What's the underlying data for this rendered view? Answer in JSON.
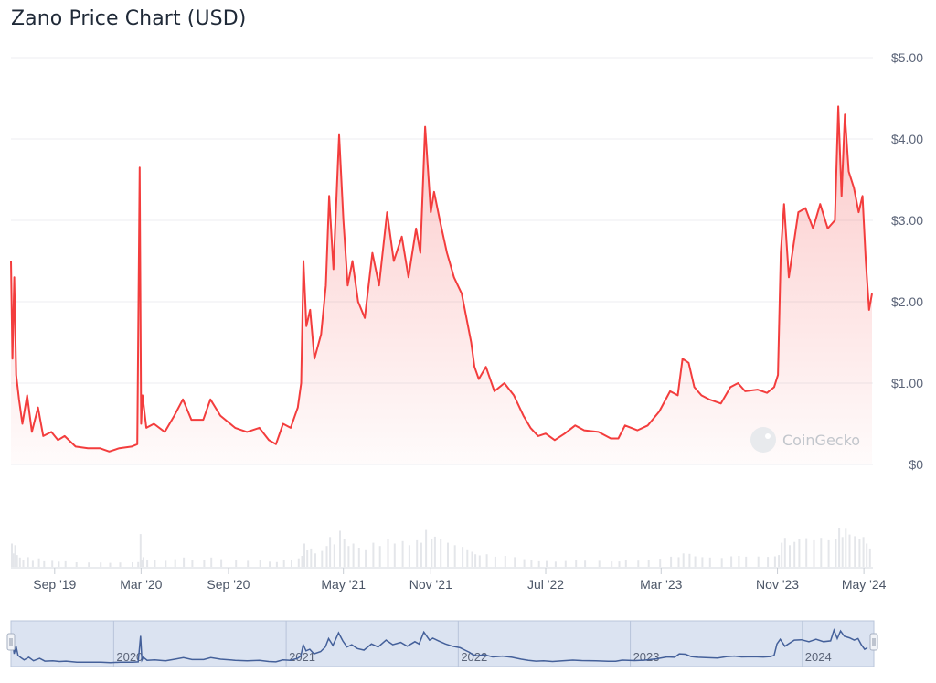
{
  "title": "Zano Price Chart (USD)",
  "watermark": "CoinGecko",
  "colors": {
    "line": "#f33d3d",
    "nav_line": "#44609a",
    "nav_fill": "#dbe3f1"
  },
  "chart_data": {
    "type": "area",
    "title": "Zano Price Chart (USD)",
    "x_range": [
      "2019-06-01",
      "2024-05-20"
    ],
    "ylim": [
      0,
      5
    ],
    "y_ticks": [
      {
        "value": 0,
        "label": "$0"
      },
      {
        "value": 1,
        "label": "$1.00"
      },
      {
        "value": 2,
        "label": "$2.00"
      },
      {
        "value": 3,
        "label": "$3.00"
      },
      {
        "value": 4,
        "label": "$4.00"
      },
      {
        "value": 5,
        "label": "$5.00"
      }
    ],
    "x_ticks": [
      {
        "date": "2019-09-01",
        "label": "Sep '19"
      },
      {
        "date": "2020-03-01",
        "label": "Mar '20"
      },
      {
        "date": "2020-09-01",
        "label": "Sep '20"
      },
      {
        "date": "2021-05-01",
        "label": "May '21"
      },
      {
        "date": "2021-11-01",
        "label": "Nov '21"
      },
      {
        "date": "2022-07-01",
        "label": "Jul '22"
      },
      {
        "date": "2023-03-01",
        "label": "Mar '23"
      },
      {
        "date": "2023-11-01",
        "label": "Nov '23"
      },
      {
        "date": "2024-05-01",
        "label": "May '24"
      }
    ],
    "navigator_ticks": [
      {
        "date": "2020-01-01",
        "label": "2020"
      },
      {
        "date": "2021-01-01",
        "label": "2021"
      },
      {
        "date": "2022-01-01",
        "label": "2022"
      },
      {
        "date": "2023-01-01",
        "label": "2023"
      },
      {
        "date": "2024-01-01",
        "label": "2024"
      }
    ],
    "grid": true,
    "series": [
      {
        "type": "area",
        "points": [
          [
            "2019-06-01",
            2.5
          ],
          [
            "2019-06-04",
            1.3
          ],
          [
            "2019-06-08",
            2.3
          ],
          [
            "2019-06-12",
            1.1
          ],
          [
            "2019-06-18",
            0.8
          ],
          [
            "2019-06-25",
            0.5
          ],
          [
            "2019-07-05",
            0.85
          ],
          [
            "2019-07-15",
            0.4
          ],
          [
            "2019-07-28",
            0.7
          ],
          [
            "2019-08-08",
            0.35
          ],
          [
            "2019-08-25",
            0.4
          ],
          [
            "2019-09-08",
            0.3
          ],
          [
            "2019-09-22",
            0.35
          ],
          [
            "2019-10-15",
            0.22
          ],
          [
            "2019-11-10",
            0.2
          ],
          [
            "2019-12-05",
            0.2
          ],
          [
            "2019-12-25",
            0.16
          ],
          [
            "2020-01-15",
            0.2
          ],
          [
            "2020-02-10",
            0.22
          ],
          [
            "2020-02-22",
            0.25
          ],
          [
            "2020-02-27",
            3.65
          ],
          [
            "2020-03-01",
            0.5
          ],
          [
            "2020-03-04",
            0.85
          ],
          [
            "2020-03-12",
            0.45
          ],
          [
            "2020-03-28",
            0.5
          ],
          [
            "2020-04-20",
            0.4
          ],
          [
            "2020-05-10",
            0.6
          ],
          [
            "2020-05-28",
            0.8
          ],
          [
            "2020-06-15",
            0.55
          ],
          [
            "2020-07-10",
            0.55
          ],
          [
            "2020-07-25",
            0.8
          ],
          [
            "2020-08-15",
            0.6
          ],
          [
            "2020-09-15",
            0.45
          ],
          [
            "2020-10-10",
            0.4
          ],
          [
            "2020-11-05",
            0.45
          ],
          [
            "2020-11-25",
            0.3
          ],
          [
            "2020-12-10",
            0.25
          ],
          [
            "2020-12-25",
            0.5
          ],
          [
            "2021-01-10",
            0.45
          ],
          [
            "2021-01-25",
            0.7
          ],
          [
            "2021-02-01",
            1.0
          ],
          [
            "2021-02-06",
            2.5
          ],
          [
            "2021-02-12",
            1.7
          ],
          [
            "2021-02-20",
            1.9
          ],
          [
            "2021-03-01",
            1.3
          ],
          [
            "2021-03-15",
            1.6
          ],
          [
            "2021-03-25",
            2.2
          ],
          [
            "2021-04-01",
            3.3
          ],
          [
            "2021-04-10",
            2.4
          ],
          [
            "2021-04-22",
            4.05
          ],
          [
            "2021-05-01",
            3.0
          ],
          [
            "2021-05-10",
            2.2
          ],
          [
            "2021-05-20",
            2.5
          ],
          [
            "2021-06-01",
            2.0
          ],
          [
            "2021-06-15",
            1.8
          ],
          [
            "2021-07-01",
            2.6
          ],
          [
            "2021-07-15",
            2.2
          ],
          [
            "2021-08-01",
            3.1
          ],
          [
            "2021-08-15",
            2.5
          ],
          [
            "2021-09-01",
            2.8
          ],
          [
            "2021-09-15",
            2.3
          ],
          [
            "2021-10-01",
            2.9
          ],
          [
            "2021-10-10",
            2.6
          ],
          [
            "2021-10-20",
            4.15
          ],
          [
            "2021-11-01",
            3.1
          ],
          [
            "2021-11-08",
            3.35
          ],
          [
            "2021-11-20",
            3.0
          ],
          [
            "2021-12-05",
            2.6
          ],
          [
            "2021-12-20",
            2.3
          ],
          [
            "2022-01-05",
            2.1
          ],
          [
            "2022-01-15",
            1.8
          ],
          [
            "2022-01-25",
            1.5
          ],
          [
            "2022-02-01",
            1.2
          ],
          [
            "2022-02-10",
            1.05
          ],
          [
            "2022-02-25",
            1.2
          ],
          [
            "2022-03-15",
            0.9
          ],
          [
            "2022-04-05",
            1.0
          ],
          [
            "2022-04-25",
            0.85
          ],
          [
            "2022-05-15",
            0.6
          ],
          [
            "2022-05-30",
            0.45
          ],
          [
            "2022-06-15",
            0.35
          ],
          [
            "2022-07-01",
            0.38
          ],
          [
            "2022-07-20",
            0.3
          ],
          [
            "2022-08-10",
            0.38
          ],
          [
            "2022-09-01",
            0.48
          ],
          [
            "2022-09-20",
            0.42
          ],
          [
            "2022-10-20",
            0.4
          ],
          [
            "2022-11-15",
            0.32
          ],
          [
            "2022-12-01",
            0.32
          ],
          [
            "2022-12-15",
            0.48
          ],
          [
            "2023-01-10",
            0.42
          ],
          [
            "2023-02-01",
            0.48
          ],
          [
            "2023-02-25",
            0.65
          ],
          [
            "2023-03-20",
            0.9
          ],
          [
            "2023-04-05",
            0.85
          ],
          [
            "2023-04-15",
            1.3
          ],
          [
            "2023-04-28",
            1.25
          ],
          [
            "2023-05-10",
            0.95
          ],
          [
            "2023-05-25",
            0.85
          ],
          [
            "2023-06-10",
            0.8
          ],
          [
            "2023-07-05",
            0.75
          ],
          [
            "2023-07-25",
            0.95
          ],
          [
            "2023-08-10",
            1.0
          ],
          [
            "2023-08-25",
            0.9
          ],
          [
            "2023-09-20",
            0.92
          ],
          [
            "2023-10-10",
            0.88
          ],
          [
            "2023-10-25",
            0.95
          ],
          [
            "2023-11-02",
            1.1
          ],
          [
            "2023-11-08",
            2.6
          ],
          [
            "2023-11-15",
            3.2
          ],
          [
            "2023-11-25",
            2.3
          ],
          [
            "2023-12-05",
            2.7
          ],
          [
            "2023-12-15",
            3.1
          ],
          [
            "2023-12-30",
            3.15
          ],
          [
            "2024-01-15",
            2.9
          ],
          [
            "2024-01-30",
            3.2
          ],
          [
            "2024-02-15",
            2.9
          ],
          [
            "2024-03-01",
            3.0
          ],
          [
            "2024-03-08",
            4.4
          ],
          [
            "2024-03-15",
            3.3
          ],
          [
            "2024-03-22",
            4.3
          ],
          [
            "2024-03-30",
            3.6
          ],
          [
            "2024-04-10",
            3.4
          ],
          [
            "2024-04-20",
            3.1
          ],
          [
            "2024-04-28",
            3.3
          ],
          [
            "2024-05-05",
            2.5
          ],
          [
            "2024-05-12",
            1.9
          ],
          [
            "2024-05-18",
            2.1
          ]
        ]
      }
    ]
  }
}
